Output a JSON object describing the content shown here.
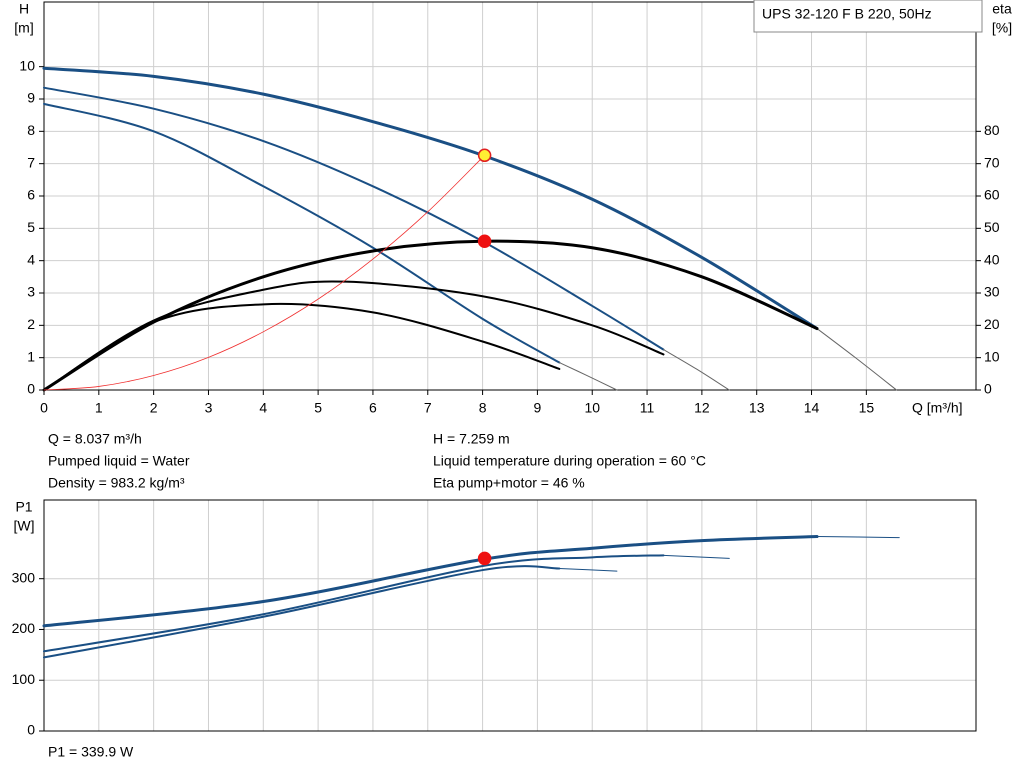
{
  "chart_data": [
    {
      "type": "line",
      "ylabel": "H",
      "yunit": "[m]",
      "y2label": "eta",
      "y2unit": "[%]",
      "xlabel": "Q [m³/h]",
      "legend": "UPS 32-120 F B 220, 50Hz",
      "xlim": [
        0,
        17
      ],
      "ylim": [
        0,
        12
      ],
      "y2lim": [
        0,
        120
      ],
      "xticks": [
        0,
        1,
        2,
        3,
        4,
        5,
        6,
        7,
        8,
        9,
        10,
        11,
        12,
        13,
        14,
        15
      ],
      "yticks": [
        0,
        1,
        2,
        3,
        4,
        5,
        6,
        7,
        8,
        9,
        10
      ],
      "y2ticks": [
        0,
        10,
        20,
        30,
        40,
        50,
        60,
        70,
        80
      ],
      "grid": true,
      "series": [
        {
          "color": "#1a4f84",
          "width": 3,
          "x": [
            0,
            2,
            4,
            6,
            8,
            10,
            12,
            14.1
          ],
          "values": [
            9.95,
            9.7,
            9.15,
            8.3,
            7.26,
            5.9,
            4.1,
            1.9
          ]
        },
        {
          "color": "#666666",
          "width": 1,
          "x": [
            14.1,
            14.8,
            15.55
          ],
          "values": [
            1.9,
            1.0,
            0
          ]
        },
        {
          "color": "#1a4f84",
          "width": 2,
          "x": [
            0,
            2,
            4,
            6,
            8,
            10,
            11.3
          ],
          "values": [
            9.35,
            8.7,
            7.7,
            6.3,
            4.6,
            2.6,
            1.25
          ]
        },
        {
          "color": "#666666",
          "width": 1,
          "x": [
            11.3,
            11.9,
            12.5
          ],
          "values": [
            1.25,
            0.65,
            0
          ]
        },
        {
          "color": "#1a4f84",
          "width": 2,
          "x": [
            0,
            2,
            4,
            6,
            8,
            9.4
          ],
          "values": [
            8.85,
            8.0,
            6.3,
            4.4,
            2.2,
            0.85
          ]
        },
        {
          "color": "#666666",
          "width": 1,
          "x": [
            9.4,
            9.9,
            10.45
          ],
          "values": [
            0.85,
            0.45,
            0
          ]
        },
        {
          "color": "#000000",
          "width": 3,
          "axis": "y2",
          "x": [
            0,
            2,
            4,
            6,
            8,
            10,
            12,
            14.1
          ],
          "values": [
            0,
            21,
            35,
            43,
            46,
            44,
            35,
            19
          ]
        },
        {
          "color": "#000000",
          "width": 2,
          "axis": "y2",
          "x": [
            0,
            2,
            4,
            5.5,
            8,
            10,
            11.3
          ],
          "values": [
            0,
            21.5,
            31,
            33.5,
            29,
            20,
            11
          ]
        },
        {
          "color": "#000000",
          "width": 2,
          "axis": "y2",
          "x": [
            0,
            2,
            4,
            6,
            8,
            9.4
          ],
          "values": [
            0,
            21,
            26.5,
            24,
            15,
            6.5
          ]
        },
        {
          "color": "#f03030",
          "width": 0.8,
          "x": [
            0,
            1,
            2,
            3,
            4,
            5,
            6,
            7,
            8.037
          ],
          "values": [
            0,
            0.11,
            0.45,
            1.01,
            1.8,
            2.81,
            4.05,
            5.51,
            7.259
          ]
        }
      ],
      "points": [
        {
          "x": 8.037,
          "y": 7.259,
          "color": "#ffee33",
          "stroke": "#e02020"
        },
        {
          "x": 8.037,
          "y": 46,
          "axis": "y2",
          "color": "#ee1111",
          "stroke": "#ee1111"
        }
      ]
    },
    {
      "type": "line",
      "ylabel": "P1",
      "yunit": "[W]",
      "xlim": [
        0,
        17
      ],
      "ylim": [
        0,
        455
      ],
      "xgrid": [
        0,
        1,
        2,
        3,
        4,
        5,
        6,
        7,
        8,
        9,
        10,
        11,
        12,
        13,
        14,
        15
      ],
      "yticks": [
        0,
        100,
        200,
        300
      ],
      "grid": true,
      "series": [
        {
          "color": "#1a4f84",
          "width": 3,
          "x": [
            0,
            4,
            8,
            10,
            12,
            14.1
          ],
          "values": [
            207,
            255,
            338,
            360,
            375,
            383
          ]
        },
        {
          "color": "#1a4f84",
          "width": 1,
          "x": [
            14.1,
            15.6
          ],
          "values": [
            383,
            381
          ]
        },
        {
          "color": "#1a4f84",
          "width": 2,
          "x": [
            0,
            4,
            8,
            10,
            11.3
          ],
          "values": [
            157,
            230,
            325,
            342,
            346
          ]
        },
        {
          "color": "#1a4f84",
          "width": 1,
          "x": [
            11.3,
            12.5
          ],
          "values": [
            346,
            340
          ]
        },
        {
          "color": "#1a4f84",
          "width": 2,
          "x": [
            0,
            4,
            8,
            9.4
          ],
          "values": [
            145,
            225,
            317,
            320
          ]
        },
        {
          "color": "#1a4f84",
          "width": 1,
          "x": [
            9.4,
            10.45
          ],
          "values": [
            320,
            315
          ]
        }
      ],
      "points": [
        {
          "x": 8.037,
          "y": 339.9,
          "color": "#ee1111",
          "stroke": "#ee1111"
        }
      ]
    }
  ],
  "info": {
    "left": [
      "Q = 8.037 m³/h",
      "Pumped liquid = Water",
      "Density = 983.2 kg/m³"
    ],
    "right": [
      "H = 7.259 m",
      "Liquid temperature during operation = 60 °C",
      "Eta pump+motor = 46 %"
    ]
  },
  "footer": "P1 = 339.9 W"
}
